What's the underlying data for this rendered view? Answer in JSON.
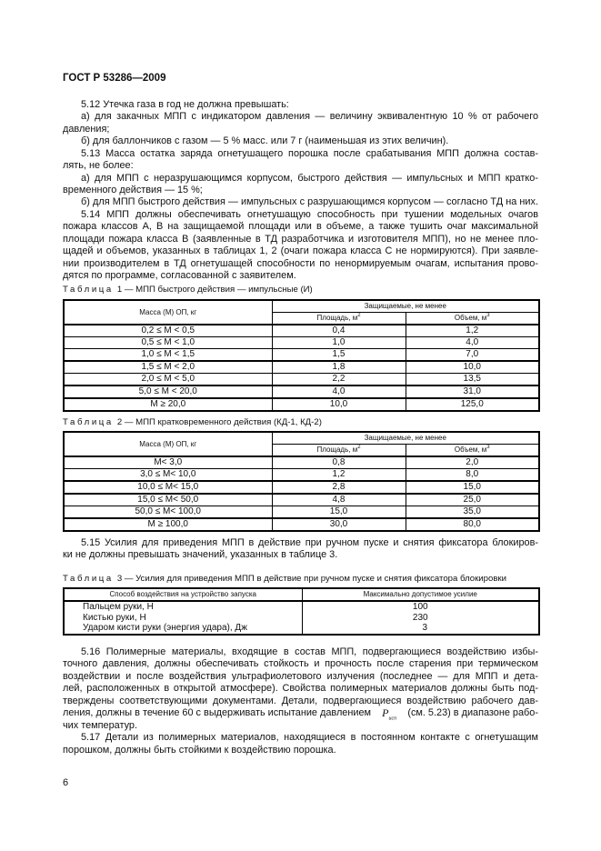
{
  "header": "ГОСТ Р 53286—2009",
  "block1": [
    "5.12 Утечка газа в год не должна превышать:",
    "а) для закачных МПП с индикатором давления — величину эквивалентную 10 % от рабочего",
    "давления;",
    "б) для баллончиков с газом — 5 % масс. или 7 г (наименьшая из этих величин).",
    "5.13 Масса остатка заряда огнетушащего порошка после срабатывания МПП должна состав-",
    "лять, не более:",
    "а) для МПП с неразрушающимся корпусом, быстрого действия — импульсных и МПП кратко-",
    "временного действия — 15 %;",
    "б) для МПП быстрого действия — импульсных с разрушающимся корпусом — согласно ТД на них.",
    "5.14 МПП должны обеспечивать огнетушащую способность при тушении модельных очагов",
    "пожара классов А, В на защищаемой площади или в объеме, а также тушить очаг максимальной",
    "площади пожара класса В (заявленные в ТД разработчика и изготовителя МПП), но не менее пло-",
    "щадей и объемов, указанных в таблицах 1, 2 (очаги пожара класса С не нормируются). При заявле-",
    "нии производителем в ТД огнетушащей способности по ненормируемым очагам, испытания прово-",
    "дятся по программе, согласованной с заявителем."
  ],
  "table_label": "Таблица",
  "table1": {
    "caption": "1 — МПП быстрого действия — импульсные (И)",
    "col_mass": "Масса (М) ОП, кг",
    "col_group": "Защищаемые, не менее",
    "col_area": "Площадь, м",
    "col_volume": "Объем, м",
    "sup2": "2",
    "sup3": "3",
    "rows": [
      [
        "0,2 ≤ М < 0,5",
        "0,4",
        "1,2"
      ],
      [
        "0,5 ≤ М < 1,0",
        "1,0",
        "4,0"
      ],
      [
        "1,0 ≤ М < 1,5",
        "1,5",
        "7,0"
      ],
      [
        "1,5 ≤ М < 2,0",
        "1,8",
        "10,0"
      ],
      [
        "2,0 ≤ М < 5,0",
        "2,2",
        "13,5"
      ],
      [
        "5,0 ≤ М < 20,0",
        "4,0",
        "31,0"
      ],
      [
        "М ≥ 20,0",
        "10,0",
        "125,0"
      ]
    ]
  },
  "table2": {
    "caption": "2 — МПП кратковременного действия (КД-1, КД-2)",
    "col_mass": "Масса (М) ОП, кг",
    "col_group": "Защищаемые, не менее",
    "col_area": "Площадь, м",
    "col_volume": "Объем, м",
    "rows": [
      [
        "М< 3,0",
        "0,8",
        "2,0"
      ],
      [
        "3,0 ≤ М< 10,0",
        "1,2",
        "8,0"
      ],
      [
        "10,0 ≤ М< 15,0",
        "2,8",
        "15,0"
      ],
      [
        "15,0 ≤ М< 50,0",
        "4,8",
        "25,0"
      ],
      [
        "50,0 ≤ М< 100,0",
        "15,0",
        "35,0"
      ],
      [
        "М ≥ 100,0",
        "30,0",
        "80,0"
      ]
    ]
  },
  "block2": [
    "5.15 Усилия для приведения МПП в действие при ручном пуске и снятия фиксатора блокиров-",
    "ки не должны превышать значений, указанных в таблице 3."
  ],
  "table3": {
    "caption": "3 — Усилия для приведения МПП в действие при ручном пуске и снятия фиксатора блокировки",
    "col_method": "Способ воздействия на устройство запуска",
    "col_force": "Максимально допустимое усилие",
    "rows": [
      [
        "Пальцем руки, Н",
        "100"
      ],
      [
        "Кистью руки, Н",
        "230"
      ],
      [
        "Ударом кисти руки (энергия удара), Дж",
        "3"
      ]
    ]
  },
  "block3": [
    "5.16 Полимерные материалы, входящие в состав МПП, подвергающиеся воздействию избы-",
    "точного давления, должны обеспечивать стойкость и прочность после старения при термическом",
    "воздействии и после воздействия ультрафиолетового излучения (последнее — для МПП и дета-",
    "лей, расположенных в открытой атмосфере). Свойства полимерных материалов должны быть под-",
    "тверждены соответствующими документами. Детали, подвергающиеся воздействию рабочего дав-",
    "ления, должны в течение 60 с выдерживать испытание давлением",
    "(см. 5.23) в диапазоне рабо-",
    "чих температур.",
    "5.17 Детали из полимерных материалов, находящиеся в постоянном контакте с огнетушащим",
    "порошком, должны быть стойкими к воздействию порошка."
  ],
  "p_symbol": "P",
  "p_sub": "исп",
  "page_number": "6"
}
